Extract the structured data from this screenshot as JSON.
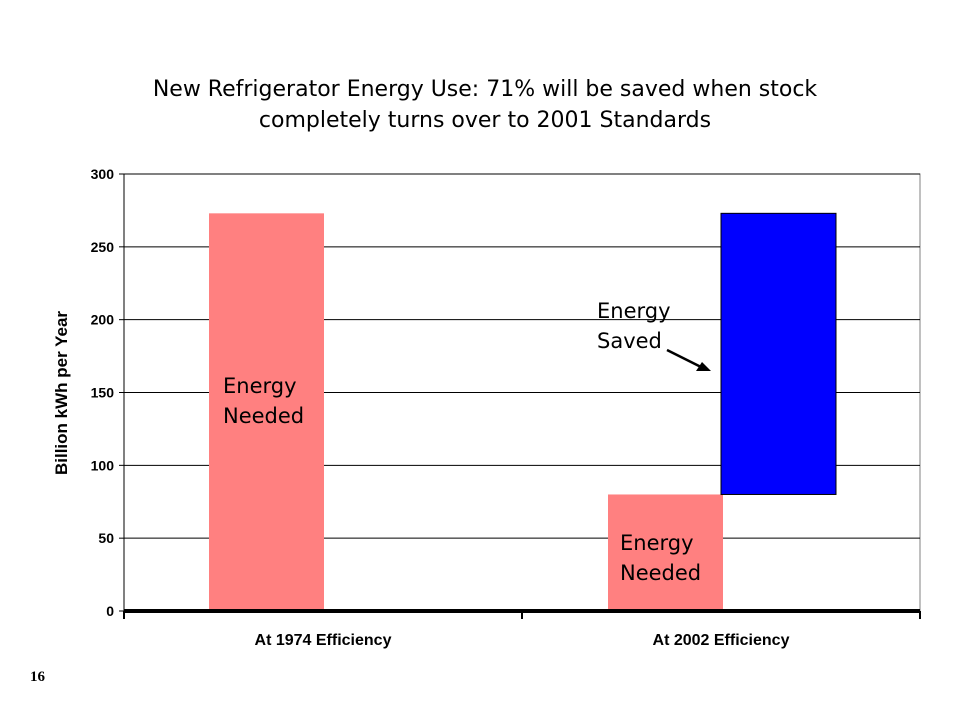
{
  "slide": {
    "title_lines": [
      "New Refrigerator Energy Use: 71% will be saved when stock",
      "completely turns over to 2001 Standards"
    ],
    "page_number": "16"
  },
  "chart_data": {
    "type": "bar",
    "stacked": true,
    "categories": [
      "At 1974 Efficiency",
      "At 2002 Efficiency"
    ],
    "series": [
      {
        "key": "needed",
        "values": [
          273,
          80
        ],
        "color": "#FF8080"
      },
      {
        "key": "saved",
        "values": [
          0,
          193
        ],
        "color": "#0000FF"
      }
    ],
    "ylabel": "Billion kWh per Year",
    "ylim": [
      0,
      300
    ],
    "yticks": [
      0,
      50,
      100,
      150,
      200,
      250,
      300
    ],
    "grid": true,
    "legend": "none",
    "annotations": {
      "needed_1974": [
        "Energy",
        "Needed"
      ],
      "needed_2002": [
        "Energy",
        "Needed"
      ],
      "saved": [
        "Energy",
        "Saved"
      ]
    }
  }
}
